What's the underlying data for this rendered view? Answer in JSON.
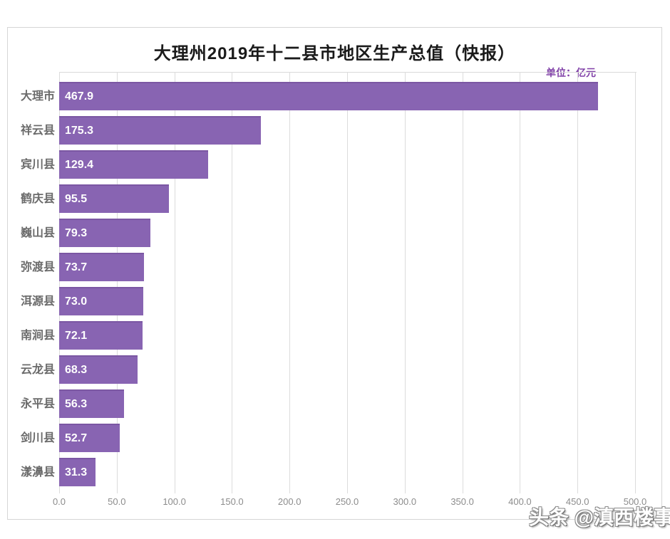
{
  "chart_data": {
    "type": "bar",
    "orientation": "horizontal",
    "title": "大理州2019年十二县市地区生产总值（快报）",
    "unit": "单位：亿元",
    "categories": [
      "大理市",
      "祥云县",
      "宾川县",
      "鹤庆县",
      "巍山县",
      "弥渡县",
      "洱源县",
      "南涧县",
      "云龙县",
      "永平县",
      "剑川县",
      "漾濞县"
    ],
    "values": [
      467.9,
      175.3,
      129.4,
      95.5,
      79.3,
      73.7,
      73.0,
      72.1,
      68.3,
      56.3,
      52.7,
      31.3
    ],
    "value_labels": [
      "467.9",
      "175.3",
      "129.4",
      "95.5",
      "79.3",
      "73.7",
      "73.0",
      "72.1",
      "68.3",
      "56.3",
      "52.7",
      "31.3"
    ],
    "xlabel": "",
    "ylabel": "",
    "xlim": [
      0,
      500
    ],
    "x_ticks": [
      "0.0",
      "50.0",
      "100.0",
      "150.0",
      "200.0",
      "250.0",
      "300.0",
      "350.0",
      "400.0",
      "450.0",
      "500.0"
    ],
    "grid": "vertical",
    "legend": "none",
    "value_label_position": "inside-left",
    "bar_color": "#8864B2"
  },
  "colors": {
    "bar_fill": "#8864B2",
    "bar_edge": "#7B57A3",
    "title_text": "#1a1a1a",
    "unit_text": "#8040A8",
    "category_text": "#6b6b6b",
    "tick_text": "#8c8c8c",
    "gridline": "#dcdcdc",
    "card_border": "#d6d6d6",
    "background": "#ffffff"
  },
  "watermark": {
    "text": "头条 @滇西楼事"
  }
}
